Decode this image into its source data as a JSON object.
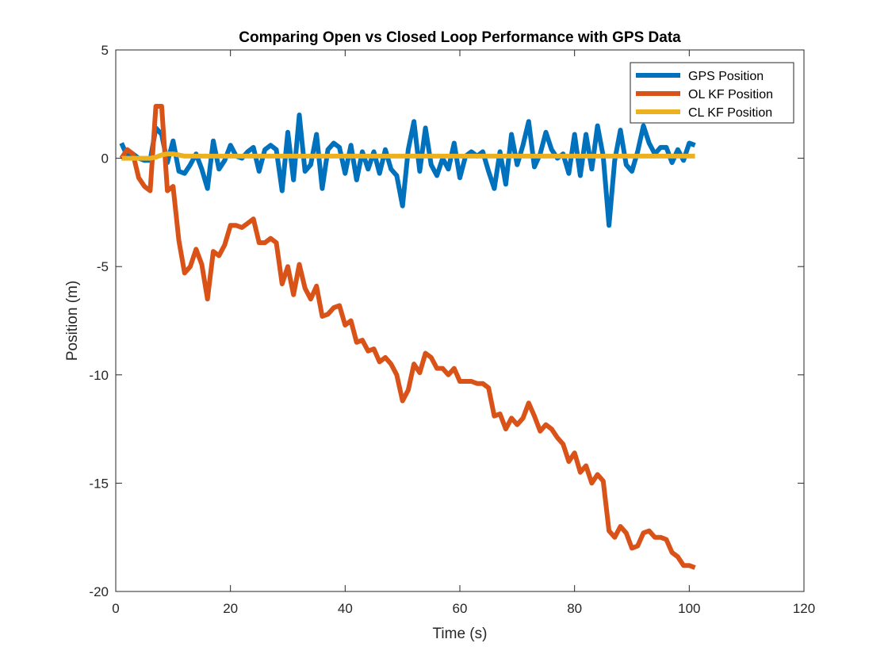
{
  "chart_data": {
    "type": "line",
    "title": "Comparing Open vs Closed Loop Performance with GPS Data",
    "xlabel": "Time (s)",
    "ylabel": "Position (m)",
    "xlim": [
      0,
      120
    ],
    "ylim": [
      -20,
      5
    ],
    "xticks": [
      0,
      20,
      40,
      60,
      80,
      100,
      120
    ],
    "yticks": [
      -20,
      -15,
      -10,
      -5,
      0,
      5
    ],
    "grid": false,
    "legend_position": "top-right",
    "x": [
      1,
      2,
      3,
      4,
      5,
      6,
      7,
      8,
      9,
      10,
      11,
      12,
      13,
      14,
      15,
      16,
      17,
      18,
      19,
      20,
      21,
      22,
      23,
      24,
      25,
      26,
      27,
      28,
      29,
      30,
      31,
      32,
      33,
      34,
      35,
      36,
      37,
      38,
      39,
      40,
      41,
      42,
      43,
      44,
      45,
      46,
      47,
      48,
      49,
      50,
      51,
      52,
      53,
      54,
      55,
      56,
      57,
      58,
      59,
      60,
      61,
      62,
      63,
      64,
      65,
      66,
      67,
      68,
      69,
      70,
      71,
      72,
      73,
      74,
      75,
      76,
      77,
      78,
      79,
      80,
      81,
      82,
      83,
      84,
      85,
      86,
      87,
      88,
      89,
      90,
      91,
      92,
      93,
      94,
      95,
      96,
      97,
      98,
      99,
      100,
      101
    ],
    "series": [
      {
        "name": "GPS Position",
        "color": "#0072BD",
        "values": [
          0.7,
          0.1,
          0.2,
          0.0,
          -0.1,
          -0.1,
          1.4,
          1.1,
          -0.2,
          0.8,
          -0.6,
          -0.7,
          -0.3,
          0.2,
          -0.5,
          -1.4,
          0.8,
          -0.5,
          -0.1,
          0.6,
          0.1,
          0.0,
          0.3,
          0.5,
          -0.6,
          0.4,
          0.6,
          0.4,
          -1.5,
          1.2,
          -1.0,
          2.0,
          -0.6,
          -0.3,
          1.1,
          -1.4,
          0.4,
          0.7,
          0.5,
          -0.7,
          0.6,
          -1.0,
          0.3,
          -0.5,
          0.3,
          -0.7,
          0.4,
          -0.5,
          -0.8,
          -2.2,
          0.4,
          1.7,
          -0.6,
          1.4,
          -0.3,
          -0.8,
          0.0,
          -0.5,
          0.7,
          -0.9,
          0.1,
          0.3,
          0.1,
          0.3,
          -0.6,
          -1.4,
          0.3,
          -1.2,
          1.1,
          -0.3,
          0.6,
          1.7,
          -0.4,
          0.2,
          1.2,
          0.4,
          0.0,
          0.2,
          -0.7,
          1.1,
          -0.8,
          1.1,
          -0.5,
          1.5,
          0.1,
          -3.1,
          -0.1,
          1.3,
          -0.3,
          -0.6,
          0.3,
          1.5,
          0.7,
          0.2,
          0.5,
          0.5,
          -0.2,
          0.4,
          -0.1,
          0.7,
          0.6
        ]
      },
      {
        "name": "OL KF Position",
        "color": "#D95319",
        "values": [
          0.0,
          0.4,
          0.2,
          -0.9,
          -1.3,
          -1.5,
          2.4,
          2.4,
          -1.5,
          -1.3,
          -3.8,
          -5.3,
          -5.0,
          -4.2,
          -4.9,
          -6.5,
          -4.3,
          -4.5,
          -4.0,
          -3.1,
          -3.1,
          -3.2,
          -3.0,
          -2.8,
          -3.9,
          -3.9,
          -3.7,
          -3.9,
          -5.8,
          -5.0,
          -6.3,
          -4.9,
          -6.0,
          -6.5,
          -5.9,
          -7.3,
          -7.2,
          -6.9,
          -6.8,
          -7.7,
          -7.5,
          -8.5,
          -8.4,
          -8.9,
          -8.8,
          -9.4,
          -9.2,
          -9.5,
          -10.0,
          -11.2,
          -10.7,
          -9.5,
          -9.9,
          -9.0,
          -9.2,
          -9.7,
          -9.7,
          -10.0,
          -9.7,
          -10.3,
          -10.3,
          -10.3,
          -10.4,
          -10.4,
          -10.6,
          -11.9,
          -11.8,
          -12.5,
          -12.0,
          -12.3,
          -12.0,
          -11.3,
          -11.9,
          -12.6,
          -12.3,
          -12.5,
          -12.9,
          -13.2,
          -14.0,
          -13.6,
          -14.5,
          -14.2,
          -15.0,
          -14.6,
          -14.9,
          -17.2,
          -17.5,
          -17.0,
          -17.3,
          -18.0,
          -17.9,
          -17.3,
          -17.2,
          -17.5,
          -17.5,
          -17.6,
          -18.2,
          -18.4,
          -18.8,
          -18.8,
          -18.9
        ]
      },
      {
        "name": "CL KF Position",
        "color": "#EDB120",
        "values": [
          0.0,
          0.0,
          0.0,
          0.0,
          0.0,
          0.0,
          0.05,
          0.15,
          0.2,
          0.2,
          0.15,
          0.1,
          0.1,
          0.1,
          0.1,
          0.1,
          0.1,
          0.1,
          0.1,
          0.1,
          0.1,
          0.1,
          0.1,
          0.1,
          0.1,
          0.1,
          0.1,
          0.1,
          0.1,
          0.1,
          0.1,
          0.1,
          0.1,
          0.1,
          0.1,
          0.1,
          0.1,
          0.1,
          0.1,
          0.1,
          0.1,
          0.1,
          0.1,
          0.1,
          0.1,
          0.1,
          0.1,
          0.1,
          0.1,
          0.1,
          0.1,
          0.1,
          0.1,
          0.1,
          0.1,
          0.1,
          0.1,
          0.1,
          0.1,
          0.1,
          0.1,
          0.1,
          0.1,
          0.1,
          0.1,
          0.1,
          0.1,
          0.1,
          0.1,
          0.1,
          0.1,
          0.1,
          0.1,
          0.1,
          0.1,
          0.1,
          0.1,
          0.1,
          0.1,
          0.1,
          0.1,
          0.1,
          0.1,
          0.1,
          0.1,
          0.1,
          0.1,
          0.1,
          0.1,
          0.1,
          0.1,
          0.1,
          0.1,
          0.1,
          0.1,
          0.1,
          0.1,
          0.1,
          0.1,
          0.1,
          0.1
        ]
      }
    ]
  }
}
